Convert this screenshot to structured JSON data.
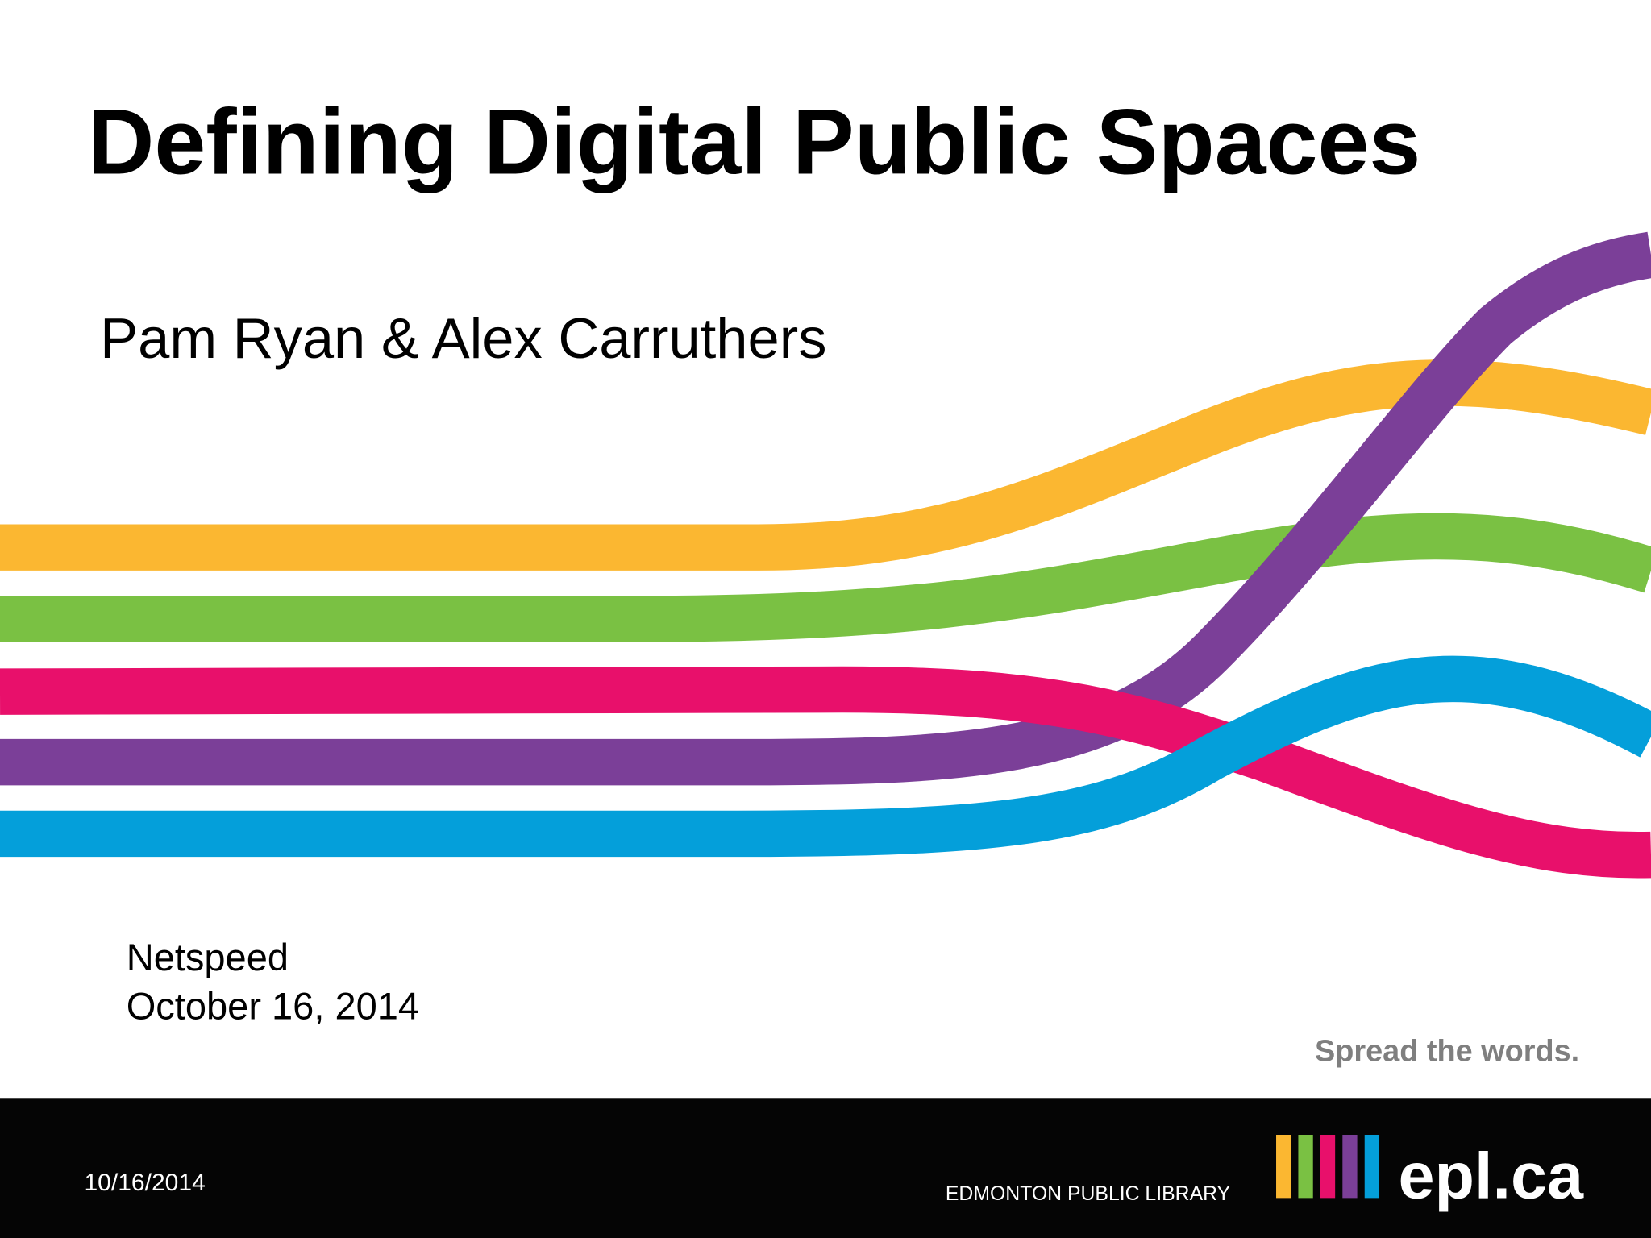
{
  "slide": {
    "title": "Defining Digital Public Spaces",
    "authors": "Pam Ryan & Alex Carruthers",
    "event": "Netspeed",
    "date": "October 16, 2014",
    "tagline": "Spread the words."
  },
  "footer": {
    "date": "10/16/2014",
    "organization": "EDMONTON PUBLIC LIBRARY",
    "website": "epl.ca"
  }
}
